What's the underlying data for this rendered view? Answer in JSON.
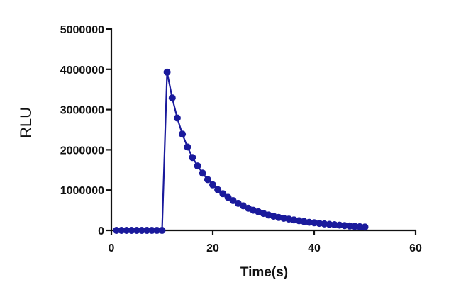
{
  "chart_data": {
    "type": "line",
    "xlabel": "Time(s)",
    "ylabel": "RLU",
    "xlim": [
      0,
      60
    ],
    "ylim": [
      0,
      5000000
    ],
    "xticks": [
      "0",
      "20",
      "40",
      "60"
    ],
    "yticks": [
      "0",
      "1000000",
      "2000000",
      "3000000",
      "4000000",
      "5000000"
    ],
    "grid": false,
    "legend": "none",
    "colors": {
      "series": "#1a1a9c",
      "axis": "#111111"
    },
    "series": [
      {
        "x": [
          1,
          2,
          3,
          4,
          5,
          6,
          7,
          8,
          9,
          10,
          11,
          12,
          13,
          14,
          15,
          16,
          17,
          18,
          19,
          20,
          21,
          22,
          23,
          24,
          25,
          26,
          27,
          28,
          29,
          30,
          31,
          32,
          33,
          34,
          35,
          36,
          37,
          38,
          39,
          40,
          41,
          42,
          43,
          44,
          45,
          46,
          47,
          48,
          49,
          50
        ],
        "y": [
          0,
          0,
          0,
          0,
          0,
          0,
          0,
          0,
          0,
          0,
          3930000,
          3290000,
          2790000,
          2390000,
          2070000,
          1810000,
          1600000,
          1420000,
          1260000,
          1130000,
          1010000,
          910000,
          820000,
          740000,
          670000,
          610000,
          550000,
          500000,
          460000,
          420000,
          380000,
          350000,
          320000,
          300000,
          280000,
          260000,
          240000,
          220000,
          200000,
          190000,
          175000,
          160000,
          150000,
          140000,
          130000,
          120000,
          110000,
          100000,
          90000,
          82000
        ]
      }
    ]
  }
}
